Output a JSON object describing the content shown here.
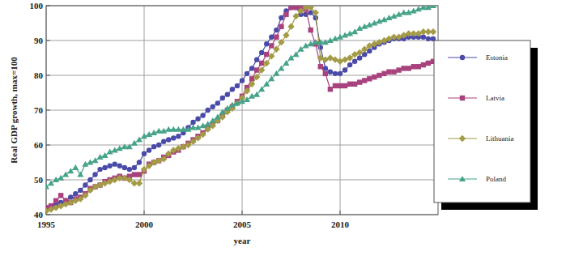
{
  "chart_data": {
    "type": "line",
    "x_label": "year",
    "y_label": "Real GDP growth, max=100",
    "xlim": [
      1995,
      2015
    ],
    "xticks": [
      1995,
      2000,
      2005,
      2010
    ],
    "ylim": [
      40,
      100
    ],
    "yticks": [
      40,
      50,
      60,
      70,
      80,
      90,
      100
    ],
    "grid": true,
    "legend": "right",
    "x": [
      1995,
      1995.25,
      1995.5,
      1995.75,
      1996,
      1996.25,
      1996.5,
      1996.75,
      1997,
      1997.25,
      1997.5,
      1997.75,
      1998,
      1998.25,
      1998.5,
      1998.75,
      1999,
      1999.25,
      1999.5,
      1999.75,
      2000,
      2000.25,
      2000.5,
      2000.75,
      2001,
      2001.25,
      2001.5,
      2001.75,
      2002,
      2002.25,
      2002.5,
      2002.75,
      2003,
      2003.25,
      2003.5,
      2003.75,
      2004,
      2004.25,
      2004.5,
      2004.75,
      2005,
      2005.25,
      2005.5,
      2005.75,
      2006,
      2006.25,
      2006.5,
      2006.75,
      2007,
      2007.25,
      2007.5,
      2007.75,
      2008,
      2008.25,
      2008.5,
      2008.75,
      2009,
      2009.25,
      2009.5,
      2009.75,
      2010,
      2010.25,
      2010.5,
      2010.75,
      2011,
      2011.25,
      2011.5,
      2011.75,
      2012,
      2012.25,
      2012.5,
      2012.75,
      2013,
      2013.25,
      2013.5,
      2013.75,
      2014,
      2014.25,
      2014.5,
      2014.75
    ],
    "series": [
      {
        "name": "Estonia",
        "color": "#4a4aa8",
        "marker": "circle",
        "values": [
          42,
          42.5,
          43,
          43.5,
          44,
          45,
          46,
          47,
          48.5,
          50,
          51.5,
          53,
          53.5,
          54,
          54.5,
          54,
          53.5,
          53,
          53.5,
          55,
          57.5,
          58.5,
          59.5,
          60,
          61,
          61.5,
          62,
          62.5,
          63.5,
          65,
          66.5,
          67.5,
          68.5,
          70,
          71,
          72,
          73.5,
          74.5,
          76,
          77,
          78.5,
          80.5,
          82,
          84.5,
          86.5,
          89,
          91,
          93,
          96.5,
          98.5,
          99.5,
          99.5,
          97.5,
          97.5,
          98,
          96.5,
          88,
          82,
          81,
          80.5,
          80.5,
          81.5,
          83,
          84,
          85,
          86,
          87,
          88,
          89,
          89.5,
          90,
          90.5,
          90.5,
          90.5,
          91,
          91,
          91,
          91,
          90.5,
          90.5
        ]
      },
      {
        "name": "Latvia",
        "color": "#a8427e",
        "marker": "square",
        "values": [
          42,
          42.5,
          44,
          45.5,
          44,
          43.5,
          44.5,
          45,
          46,
          47.5,
          48,
          48.5,
          49.5,
          50,
          50.5,
          51,
          50.5,
          51,
          51.5,
          51.5,
          52.5,
          54.5,
          55,
          55.5,
          56.5,
          57,
          58,
          58.5,
          59.5,
          60.5,
          61.5,
          62.5,
          63.5,
          65,
          66,
          67,
          68.5,
          70,
          71,
          72.5,
          74,
          76.5,
          79,
          81.5,
          83.5,
          86,
          88.5,
          91,
          94,
          97.5,
          99.5,
          99.5,
          99.5,
          99,
          93,
          89,
          82.5,
          80.5,
          76,
          77,
          77,
          77,
          77.5,
          77.5,
          78,
          78.5,
          79,
          79.5,
          80,
          80.5,
          81,
          81,
          81.5,
          82,
          82,
          82.5,
          82.5,
          83,
          83.5,
          84
        ]
      },
      {
        "name": "Lithuania",
        "color": "#a39b46",
        "marker": "diamond",
        "values": [
          41,
          41.5,
          42,
          42.5,
          43,
          43.5,
          44,
          44.5,
          45.5,
          47,
          48,
          48.5,
          49,
          49.5,
          50,
          50.5,
          50.5,
          50,
          49,
          49,
          53,
          54,
          55,
          55.5,
          56,
          57.5,
          58.5,
          59,
          59.5,
          60,
          61,
          62,
          63,
          64.5,
          65.5,
          67,
          68,
          69.5,
          70.5,
          72,
          73.5,
          75.5,
          77.5,
          79.5,
          81.5,
          83.5,
          85.5,
          87.5,
          89.5,
          91.5,
          94,
          97,
          98.5,
          99.5,
          99.5,
          98,
          85,
          84.5,
          85,
          84.5,
          84,
          84.5,
          85,
          86,
          86.5,
          87.5,
          88.5,
          89,
          89.5,
          90,
          90.5,
          91,
          91,
          91.5,
          92,
          92,
          92,
          92.5,
          92.5,
          92.5
        ]
      },
      {
        "name": "Poland",
        "color": "#46a389",
        "marker": "triangle",
        "values": [
          48,
          49,
          50,
          50.5,
          51.5,
          52.5,
          53.5,
          51.5,
          54.5,
          55,
          55.5,
          56.5,
          57,
          58,
          58.5,
          59,
          59.5,
          59.5,
          60.5,
          61.5,
          62.5,
          63,
          63.5,
          64,
          64,
          64.5,
          64.5,
          64.5,
          64.5,
          64.5,
          65,
          65,
          65.5,
          66,
          67,
          68,
          69.5,
          70.5,
          71.5,
          72,
          72.5,
          73,
          74,
          74.5,
          76,
          77.5,
          79,
          80.5,
          82,
          83.5,
          85,
          86,
          87.5,
          88.5,
          89,
          89.5,
          89.5,
          89.5,
          90,
          90.5,
          91,
          91.5,
          92,
          92.5,
          93.5,
          94,
          94.5,
          95,
          95.5,
          96,
          96.5,
          97,
          97.5,
          98,
          98,
          98.5,
          99,
          99.5,
          99.5,
          100
        ]
      }
    ]
  }
}
